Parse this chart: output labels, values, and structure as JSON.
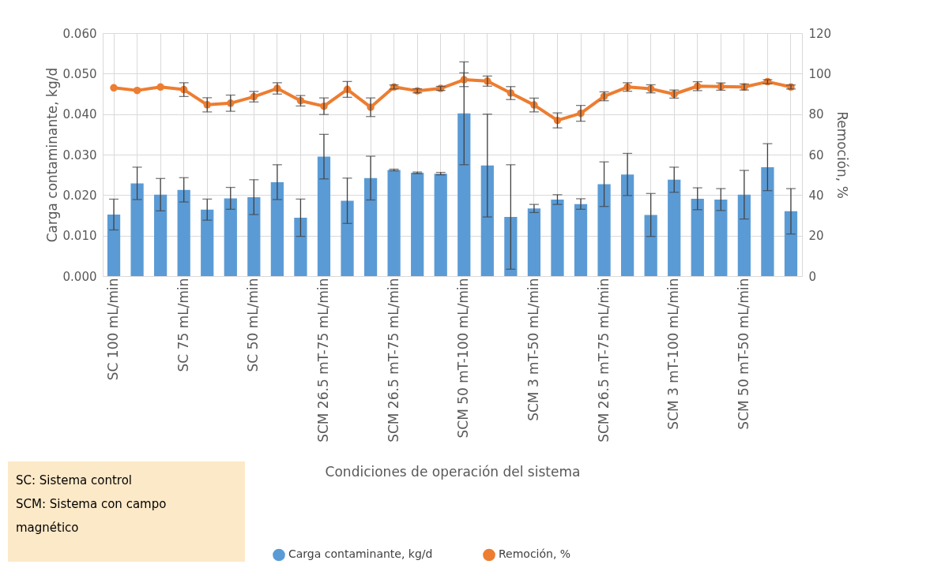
{
  "chart_data": {
    "type": "bar",
    "xlabel": "Condiciones de operación del sistema",
    "ylabel": "Carga contaminante, kg/d",
    "y2label": "Remoción, %",
    "categories": [
      "SC 100 mL/min",
      null,
      null,
      "SC 75 mL/min",
      null,
      null,
      "SC 50 mL/min",
      null,
      null,
      "SCM 26.5 mT-75 mL/min",
      null,
      null,
      "SCM 26.5 mT-75 mL/min",
      null,
      null,
      "SCM 50 mT-100 mL/min",
      null,
      null,
      "SCM 3 mT-50 mL/min",
      null,
      null,
      "SCM 26.5 mT-75 mL/min",
      null,
      null,
      "SCM 3 mT-100 mL/min",
      null,
      null,
      "SCM 50 mT-50 mL/min",
      null,
      null
    ],
    "series": [
      {
        "name": "Carga contaminante, kg/d",
        "color": "#5b9bd5",
        "values": [
          0.0152,
          0.0229,
          0.0201,
          0.0213,
          0.0164,
          0.0192,
          0.0195,
          0.0232,
          0.0144,
          0.0295,
          0.0186,
          0.0242,
          0.0262,
          0.0255,
          0.0253,
          0.0402,
          0.0273,
          0.0146,
          0.0167,
          0.0189,
          0.0178,
          0.0227,
          0.0251,
          0.0151,
          0.0238,
          0.0191,
          0.0189,
          0.0201,
          0.0269,
          0.016
        ],
        "errors": [
          0.0038,
          0.004,
          0.004,
          0.003,
          0.0026,
          0.0027,
          0.0043,
          0.0043,
          0.0046,
          0.0055,
          0.0056,
          0.0054,
          0.0002,
          0.0002,
          0.0003,
          0.0127,
          0.0127,
          0.0129,
          0.001,
          0.0012,
          0.0013,
          0.0055,
          0.0052,
          0.0053,
          0.0031,
          0.0027,
          0.0027,
          0.006,
          0.0058,
          0.0056
        ]
      },
      {
        "name": "Remoción, %",
        "color": "#ed7d31",
        "type": "line",
        "axis": "y2",
        "values": [
          93.0,
          91.7,
          93.4,
          92.1,
          84.6,
          85.4,
          88.6,
          92.7,
          86.6,
          83.9,
          92.2,
          83.4,
          93.4,
          91.5,
          92.7,
          97.0,
          96.3,
          90.4,
          84.5,
          76.9,
          80.4,
          88.8,
          93.4,
          92.5,
          89.9,
          93.8,
          93.6,
          93.4,
          96.0,
          93.4
        ],
        "errors": [
          null,
          null,
          null,
          3.4,
          3.5,
          4,
          2.6,
          2.8,
          2.6,
          4.1,
          3.9,
          4.6,
          1,
          1,
          1,
          3.4,
          2.5,
          3.2,
          3.4,
          3.7,
          3.9,
          2.2,
          2.1,
          2,
          2,
          2.2,
          1.8,
          1.5,
          1,
          1
        ]
      }
    ],
    "ylim": [
      0,
      0.06
    ],
    "yticks": [
      {
        "value": 0,
        "label": "0.000"
      },
      {
        "value": 0.01,
        "label": "0.010"
      },
      {
        "value": 0.02,
        "label": "0.020"
      },
      {
        "value": 0.03,
        "label": "0.030"
      },
      {
        "value": 0.04,
        "label": "0.040"
      },
      {
        "value": 0.05,
        "label": "0.050"
      },
      {
        "value": 0.06,
        "label": "0.060"
      }
    ],
    "y2lim": [
      0,
      120
    ],
    "y2ticks": [
      0,
      20,
      40,
      60,
      80,
      100,
      120
    ],
    "grid": true,
    "legend": "bottom",
    "marker": "circle",
    "line_style": "solid",
    "annotations": [
      "SC: Sistema control",
      "SCM: Sistema con campo magnético"
    ]
  }
}
